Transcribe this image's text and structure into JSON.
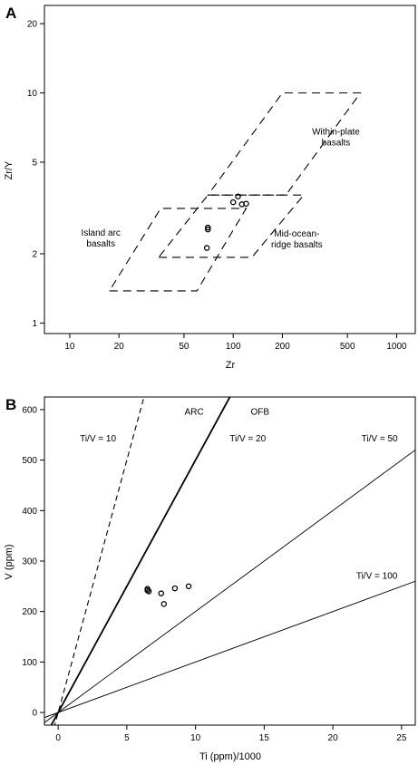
{
  "chart_data": [
    {
      "panel": "A",
      "type": "scatter",
      "x_scale": "log",
      "y_scale": "log",
      "xlabel": "Zr",
      "ylabel": "Zr/Y",
      "xlim": [
        7,
        1300
      ],
      "ylim": [
        0.9,
        24
      ],
      "x_ticks": [
        10,
        20,
        50,
        100,
        200,
        500,
        1000
      ],
      "y_ticks": [
        1,
        2,
        5,
        10,
        20
      ],
      "points": [
        {
          "x": 70,
          "y": 2.6
        },
        {
          "x": 70,
          "y": 2.55
        },
        {
          "x": 69,
          "y": 2.12
        },
        {
          "x": 100,
          "y": 3.35
        },
        {
          "x": 107,
          "y": 3.55
        },
        {
          "x": 113,
          "y": 3.28
        },
        {
          "x": 120,
          "y": 3.3
        }
      ],
      "fields": [
        {
          "name": "island-arc",
          "vertices": [
            [
              17.5,
              1.38
            ],
            [
              60,
              1.38
            ],
            [
              120,
              3.15
            ],
            [
              36,
              3.15
            ]
          ]
        },
        {
          "name": "mid-ocean-ridge",
          "vertices": [
            [
              35,
              1.93
            ],
            [
              130,
              1.93
            ],
            [
              270,
              3.6
            ],
            [
              70,
              3.6
            ]
          ]
        },
        {
          "name": "within-plate",
          "vertices": [
            [
              70,
              3.6
            ],
            [
              210,
              3.6
            ],
            [
              600,
              10
            ],
            [
              200,
              10
            ]
          ]
        }
      ],
      "annotations": [
        {
          "id": "island-arc",
          "lines": [
            "Island arc",
            "basalts"
          ],
          "x": 15.5,
          "y": 2.4
        },
        {
          "id": "mid-ocean-ridge",
          "lines": [
            "Mid-ocean-",
            "ridge basalts"
          ],
          "x": 245,
          "y": 2.38
        },
        {
          "id": "within-plate",
          "lines": [
            "Within-plate",
            "basalts"
          ],
          "x": 425,
          "y": 6.6
        }
      ]
    },
    {
      "panel": "B",
      "type": "scatter",
      "xlabel": "Ti (ppm)/1000",
      "ylabel": "V (ppm)",
      "xlim": [
        -1,
        26
      ],
      "ylim": [
        -25,
        625
      ],
      "x_ticks": [
        0,
        5,
        10,
        15,
        20,
        25
      ],
      "y_ticks": [
        0,
        100,
        200,
        300,
        400,
        500,
        600
      ],
      "points": [
        {
          "x": 6.5,
          "y": 245
        },
        {
          "x": 6.5,
          "y": 242
        },
        {
          "x": 6.6,
          "y": 240
        },
        {
          "x": 7.5,
          "y": 236
        },
        {
          "x": 7.7,
          "y": 215
        },
        {
          "x": 8.5,
          "y": 246
        },
        {
          "x": 9.5,
          "y": 250
        }
      ],
      "lines": [
        {
          "label": "Ti/V = 10",
          "ratio": 10,
          "style": "dashed",
          "label_x": 2.9,
          "label_y": 537
        },
        {
          "label": "Ti/V = 20",
          "ratio": 20,
          "style": "bold",
          "label_x": 13.8,
          "label_y": 537
        },
        {
          "label": "Ti/V = 50",
          "ratio": 50,
          "style": "thin",
          "label_x": 23.4,
          "label_y": 537
        },
        {
          "label": "Ti/V = 100",
          "ratio": 100,
          "style": "thin",
          "label_x": 23.2,
          "label_y": 265
        }
      ],
      "field_labels": [
        {
          "label": "ARC",
          "x": 9.9,
          "y": 590
        },
        {
          "label": "OFB",
          "x": 14.7,
          "y": 590
        }
      ]
    }
  ]
}
